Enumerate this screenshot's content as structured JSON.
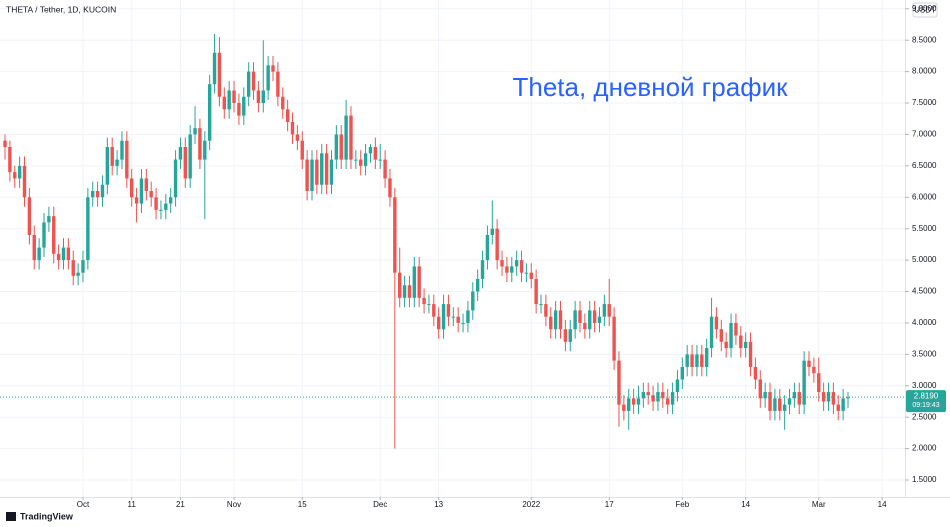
{
  "chart_data": {
    "type": "candlestick",
    "symbol_title": "THETA / Tether, 1D, KUCOIN",
    "currency": "USDT",
    "annotation": "Theta, дневной график",
    "up_color": "#26a69a",
    "down_color": "#ef5350",
    "grid": true,
    "candles": [
      [
        6.9,
        7.0,
        6.6,
        6.8
      ],
      [
        6.8,
        6.9,
        6.25,
        6.4
      ],
      [
        6.4,
        6.5,
        6.15,
        6.3
      ],
      [
        6.3,
        6.65,
        6.15,
        6.5
      ],
      [
        6.5,
        6.65,
        5.85,
        6.0
      ],
      [
        6.0,
        6.15,
        5.25,
        5.4
      ],
      [
        5.4,
        5.55,
        4.85,
        5.0
      ],
      [
        5.0,
        5.35,
        4.85,
        5.2
      ],
      [
        5.2,
        5.75,
        5.05,
        5.6
      ],
      [
        5.6,
        5.85,
        5.45,
        5.7
      ],
      [
        5.7,
        5.85,
        4.95,
        5.1
      ],
      [
        5.1,
        5.25,
        4.85,
        5.0
      ],
      [
        5.0,
        5.35,
        4.85,
        5.2
      ],
      [
        5.2,
        5.35,
        4.85,
        5.0
      ],
      [
        5.0,
        5.15,
        4.6,
        4.75
      ],
      [
        4.75,
        4.95,
        4.6,
        4.8
      ],
      [
        4.8,
        5.15,
        4.65,
        5.0
      ],
      [
        5.0,
        6.15,
        4.85,
        6.0
      ],
      [
        6.0,
        6.25,
        5.85,
        6.1
      ],
      [
        6.1,
        6.25,
        5.85,
        6.0
      ],
      [
        6.0,
        6.35,
        5.85,
        6.2
      ],
      [
        6.2,
        6.95,
        6.05,
        6.8
      ],
      [
        6.8,
        6.95,
        6.35,
        6.5
      ],
      [
        6.5,
        6.75,
        6.35,
        6.6
      ],
      [
        6.6,
        7.05,
        6.45,
        6.9
      ],
      [
        6.9,
        7.05,
        6.15,
        6.3
      ],
      [
        6.3,
        6.45,
        5.85,
        6.0
      ],
      [
        6.0,
        6.15,
        5.6,
        5.9
      ],
      [
        5.9,
        6.45,
        5.75,
        6.3
      ],
      [
        6.3,
        6.45,
        5.95,
        6.1
      ],
      [
        6.1,
        6.25,
        5.85,
        6.0
      ],
      [
        6.0,
        6.15,
        5.65,
        5.8
      ],
      [
        5.8,
        5.95,
        5.65,
        5.8
      ],
      [
        5.8,
        6.05,
        5.65,
        5.9
      ],
      [
        5.9,
        6.15,
        5.75,
        6.0
      ],
      [
        6.0,
        6.75,
        5.85,
        6.6
      ],
      [
        6.6,
        6.95,
        6.45,
        6.8
      ],
      [
        6.8,
        6.95,
        6.15,
        6.3
      ],
      [
        6.3,
        7.15,
        6.15,
        7.0
      ],
      [
        7.0,
        7.45,
        6.85,
        7.1
      ],
      [
        7.1,
        7.25,
        6.45,
        6.6
      ],
      [
        6.6,
        7.05,
        5.65,
        6.9
      ],
      [
        6.9,
        7.95,
        6.75,
        7.8
      ],
      [
        7.8,
        8.6,
        7.65,
        8.3
      ],
      [
        8.3,
        8.55,
        7.45,
        7.6
      ],
      [
        7.6,
        7.75,
        7.25,
        7.4
      ],
      [
        7.4,
        7.85,
        7.25,
        7.7
      ],
      [
        7.7,
        7.85,
        7.35,
        7.5
      ],
      [
        7.5,
        7.65,
        7.15,
        7.3
      ],
      [
        7.3,
        7.75,
        7.15,
        7.6
      ],
      [
        7.6,
        8.15,
        7.45,
        8.0
      ],
      [
        8.0,
        8.15,
        7.55,
        7.7
      ],
      [
        7.7,
        7.85,
        7.35,
        7.5
      ],
      [
        7.5,
        8.5,
        7.35,
        7.7
      ],
      [
        7.7,
        8.25,
        7.55,
        8.1
      ],
      [
        8.1,
        8.25,
        7.85,
        8.0
      ],
      [
        8.0,
        8.15,
        7.45,
        7.6
      ],
      [
        7.6,
        7.75,
        7.25,
        7.4
      ],
      [
        7.4,
        7.55,
        7.05,
        7.2
      ],
      [
        7.2,
        7.35,
        6.85,
        7.0
      ],
      [
        7.0,
        7.15,
        6.75,
        6.9
      ],
      [
        6.9,
        7.05,
        6.45,
        6.6
      ],
      [
        6.6,
        6.75,
        5.95,
        6.1
      ],
      [
        6.1,
        6.75,
        5.95,
        6.6
      ],
      [
        6.6,
        6.75,
        6.05,
        6.2
      ],
      [
        6.2,
        6.85,
        6.05,
        6.7
      ],
      [
        6.7,
        6.85,
        6.05,
        6.2
      ],
      [
        6.2,
        6.75,
        6.05,
        6.6
      ],
      [
        6.6,
        7.15,
        6.45,
        7.0
      ],
      [
        7.0,
        7.15,
        6.45,
        6.6
      ],
      [
        6.6,
        7.55,
        6.45,
        7.3
      ],
      [
        7.3,
        7.45,
        6.45,
        6.6
      ],
      [
        6.6,
        6.75,
        6.45,
        6.6
      ],
      [
        6.6,
        6.75,
        6.35,
        6.5
      ],
      [
        6.5,
        6.85,
        6.35,
        6.7
      ],
      [
        6.7,
        6.85,
        6.55,
        6.8
      ],
      [
        6.8,
        6.95,
        6.45,
        6.6
      ],
      [
        6.6,
        6.85,
        6.45,
        6.6
      ],
      [
        6.6,
        6.75,
        6.15,
        6.3
      ],
      [
        6.3,
        6.45,
        5.85,
        6.0
      ],
      [
        6.0,
        6.15,
        2.0,
        4.8
      ],
      [
        4.8,
        5.2,
        4.25,
        4.4
      ],
      [
        4.4,
        4.75,
        4.25,
        4.6
      ],
      [
        4.6,
        4.75,
        4.25,
        4.4
      ],
      [
        4.4,
        5.05,
        4.25,
        4.9
      ],
      [
        4.9,
        5.05,
        4.25,
        4.4
      ],
      [
        4.4,
        4.55,
        4.15,
        4.3
      ],
      [
        4.3,
        4.45,
        4.15,
        4.3
      ],
      [
        4.3,
        4.45,
        3.95,
        4.1
      ],
      [
        4.1,
        4.25,
        3.75,
        3.9
      ],
      [
        3.9,
        4.45,
        3.75,
        4.3
      ],
      [
        4.3,
        4.45,
        3.95,
        4.1
      ],
      [
        4.1,
        4.25,
        3.95,
        4.1
      ],
      [
        4.1,
        4.25,
        3.85,
        4.0
      ],
      [
        4.0,
        4.15,
        3.85,
        4.0
      ],
      [
        4.0,
        4.35,
        3.85,
        4.2
      ],
      [
        4.2,
        4.65,
        4.05,
        4.5
      ],
      [
        4.5,
        4.85,
        4.35,
        4.7
      ],
      [
        4.7,
        5.15,
        4.55,
        5.0
      ],
      [
        5.0,
        5.55,
        4.85,
        5.4
      ],
      [
        5.4,
        5.95,
        5.25,
        5.5
      ],
      [
        5.5,
        5.65,
        4.85,
        5.0
      ],
      [
        5.0,
        5.15,
        4.75,
        4.9
      ],
      [
        4.9,
        5.05,
        4.65,
        4.8
      ],
      [
        4.8,
        5.05,
        4.65,
        4.9
      ],
      [
        4.9,
        5.15,
        4.75,
        5.0
      ],
      [
        5.0,
        5.15,
        4.65,
        4.8
      ],
      [
        4.8,
        4.95,
        4.65,
        4.8
      ],
      [
        4.8,
        4.95,
        4.55,
        4.7
      ],
      [
        4.7,
        4.85,
        4.15,
        4.3
      ],
      [
        4.3,
        4.45,
        4.15,
        4.3
      ],
      [
        4.3,
        4.45,
        3.95,
        4.1
      ],
      [
        4.1,
        4.25,
        3.75,
        3.9
      ],
      [
        3.9,
        4.35,
        3.75,
        4.2
      ],
      [
        4.2,
        4.35,
        3.75,
        3.9
      ],
      [
        3.9,
        4.05,
        3.55,
        3.7
      ],
      [
        3.7,
        4.05,
        3.55,
        3.9
      ],
      [
        3.9,
        4.35,
        3.75,
        4.2
      ],
      [
        4.2,
        4.35,
        3.85,
        4.0
      ],
      [
        4.0,
        4.15,
        3.75,
        3.9
      ],
      [
        3.9,
        4.35,
        3.75,
        4.2
      ],
      [
        4.2,
        4.35,
        3.85,
        4.0
      ],
      [
        4.0,
        4.25,
        3.85,
        4.1
      ],
      [
        4.1,
        4.45,
        3.95,
        4.3
      ],
      [
        4.3,
        4.7,
        3.95,
        4.1
      ],
      [
        4.1,
        4.25,
        3.25,
        3.4
      ],
      [
        3.4,
        3.55,
        2.35,
        2.7
      ],
      [
        2.7,
        2.85,
        2.45,
        2.6
      ],
      [
        2.6,
        2.95,
        2.3,
        2.8
      ],
      [
        2.8,
        2.95,
        2.55,
        2.7
      ],
      [
        2.7,
        3.0,
        2.55,
        2.8
      ],
      [
        2.8,
        3.05,
        2.65,
        2.9
      ],
      [
        2.9,
        3.05,
        2.7,
        2.85
      ],
      [
        2.85,
        3.0,
        2.6,
        2.75
      ],
      [
        2.75,
        3.05,
        2.6,
        2.9
      ],
      [
        2.9,
        3.05,
        2.65,
        2.8
      ],
      [
        2.8,
        2.95,
        2.55,
        2.7
      ],
      [
        2.7,
        3.05,
        2.55,
        2.9
      ],
      [
        2.9,
        3.25,
        2.75,
        3.1
      ],
      [
        3.1,
        3.45,
        2.95,
        3.3
      ],
      [
        3.3,
        3.65,
        3.15,
        3.5
      ],
      [
        3.5,
        3.65,
        3.15,
        3.3
      ],
      [
        3.3,
        3.65,
        3.15,
        3.5
      ],
      [
        3.5,
        3.65,
        3.15,
        3.3
      ],
      [
        3.3,
        3.75,
        3.15,
        3.6
      ],
      [
        3.6,
        4.4,
        3.45,
        4.1
      ],
      [
        4.1,
        4.25,
        3.75,
        3.9
      ],
      [
        3.9,
        4.05,
        3.55,
        3.7
      ],
      [
        3.7,
        3.85,
        3.45,
        3.6
      ],
      [
        3.6,
        4.15,
        3.45,
        4.0
      ],
      [
        4.0,
        4.15,
        3.65,
        3.8
      ],
      [
        3.8,
        3.95,
        3.45,
        3.6
      ],
      [
        3.6,
        3.85,
        3.45,
        3.7
      ],
      [
        3.7,
        3.85,
        3.15,
        3.3
      ],
      [
        3.3,
        3.45,
        2.95,
        3.1
      ],
      [
        3.1,
        3.25,
        2.65,
        2.8
      ],
      [
        2.8,
        3.05,
        2.65,
        2.9
      ],
      [
        2.9,
        3.05,
        2.45,
        2.6
      ],
      [
        2.6,
        2.95,
        2.45,
        2.8
      ],
      [
        2.8,
        2.95,
        2.45,
        2.6
      ],
      [
        2.6,
        2.85,
        2.3,
        2.7
      ],
      [
        2.7,
        2.95,
        2.55,
        2.8
      ],
      [
        2.8,
        3.05,
        2.65,
        2.9
      ],
      [
        2.9,
        3.05,
        2.55,
        2.7
      ],
      [
        2.7,
        3.55,
        2.55,
        3.4
      ],
      [
        3.4,
        3.55,
        3.15,
        3.3
      ],
      [
        3.3,
        3.45,
        3.05,
        3.2
      ],
      [
        3.2,
        3.45,
        2.75,
        2.9
      ],
      [
        2.9,
        3.05,
        2.6,
        2.75
      ],
      [
        2.75,
        3.05,
        2.6,
        2.9
      ],
      [
        2.9,
        3.05,
        2.55,
        2.7
      ],
      [
        2.7,
        2.85,
        2.45,
        2.6
      ],
      [
        2.6,
        2.95,
        2.45,
        2.8
      ],
      [
        2.8,
        2.9,
        2.65,
        2.819
      ]
    ],
    "ylim": [
      1.23,
      9.14
    ],
    "yticks": [
      {
        "value": 1.5,
        "label": "1.5000"
      },
      {
        "value": 2.0,
        "label": "2.0000"
      },
      {
        "value": 2.5,
        "label": "2.5000"
      },
      {
        "value": 3.0,
        "label": "3.0000"
      },
      {
        "value": 3.5,
        "label": "3.5000"
      },
      {
        "value": 4.0,
        "label": "4.0000"
      },
      {
        "value": 4.5,
        "label": "4.5000"
      },
      {
        "value": 5.0,
        "label": "5.0000"
      },
      {
        "value": 5.5,
        "label": "5.5000"
      },
      {
        "value": 6.0,
        "label": "6.0000"
      },
      {
        "value": 6.5,
        "label": "6.5000"
      },
      {
        "value": 7.0,
        "label": "7.0000"
      },
      {
        "value": 7.5,
        "label": "7.5000"
      },
      {
        "value": 8.0,
        "label": "8.0000"
      },
      {
        "value": 8.5,
        "label": "8.5000"
      },
      {
        "value": 9.0,
        "label": "9.0000"
      }
    ],
    "xlim": [
      -1.03,
      184.7
    ],
    "xticks": [
      {
        "value": 16,
        "label": "Oct"
      },
      {
        "value": 26,
        "label": "11"
      },
      {
        "value": 36,
        "label": "21"
      },
      {
        "value": 47,
        "label": "Nov"
      },
      {
        "value": 61,
        "label": "15"
      },
      {
        "value": 77,
        "label": "Dec"
      },
      {
        "value": 89,
        "label": "13"
      },
      {
        "value": 108,
        "label": "2022"
      },
      {
        "value": 124,
        "label": "17"
      },
      {
        "value": 139,
        "label": "Feb"
      },
      {
        "value": 152,
        "label": "14"
      },
      {
        "value": 167,
        "label": "Mar"
      },
      {
        "value": 180,
        "label": "14"
      }
    ],
    "last_price": {
      "value": 2.819,
      "label": "2.8190"
    },
    "countdown": "09:19:43"
  },
  "branding": "TradingView"
}
